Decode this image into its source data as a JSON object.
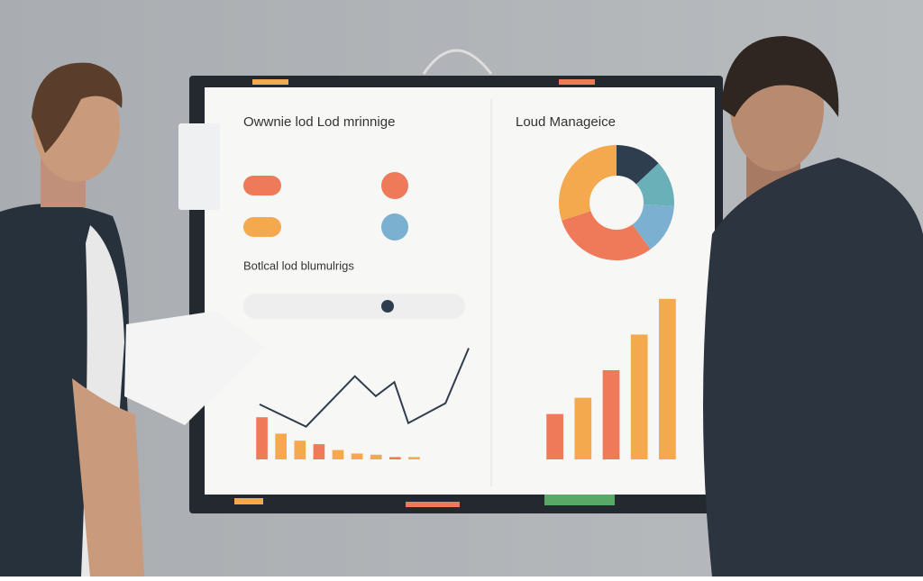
{
  "headings": [
    "Owwnie lod Lod mrinnige",
    "Loud Manageice",
    "Botlcal lod blumulrigs"
  ],
  "chart_data": [
    {
      "type": "pie",
      "values": [
        13,
        13,
        14,
        30,
        30
      ],
      "colors": [
        "#2f3e4e",
        "#6ab0b8",
        "#7bb0d0",
        "#ef7a5a",
        "#f4a94e"
      ]
    },
    {
      "type": "bar",
      "values": [
        28,
        38,
        55,
        77,
        99
      ],
      "colors": [
        "#ef7a5a",
        "#f4a94e",
        "#ef7a5a",
        "#f4a94e",
        "#f4a94e"
      ],
      "ylim": [
        0,
        100
      ]
    },
    {
      "type": "bar",
      "values": [
        36,
        22,
        16,
        13,
        8,
        5,
        4,
        2,
        2
      ],
      "colors": [
        "#ef7a5a",
        "#f4a94e",
        "#f4a94e",
        "#ef7a5a",
        "#f4a94e",
        "#f4a94e",
        "#f4a94e",
        "#ef7a5a",
        "#f4a94e"
      ],
      "ylim": [
        0,
        100
      ]
    },
    {
      "type": "line",
      "x": [
        0,
        20,
        41,
        50,
        58,
        64,
        80,
        90
      ],
      "xlim": [
        0,
        90
      ],
      "series": [
        {
          "color": "#2f3e4e",
          "values": [
            47,
            28,
            71,
            54,
            66,
            31,
            48,
            95
          ]
        }
      ],
      "ylim": [
        0,
        100
      ]
    }
  ]
}
